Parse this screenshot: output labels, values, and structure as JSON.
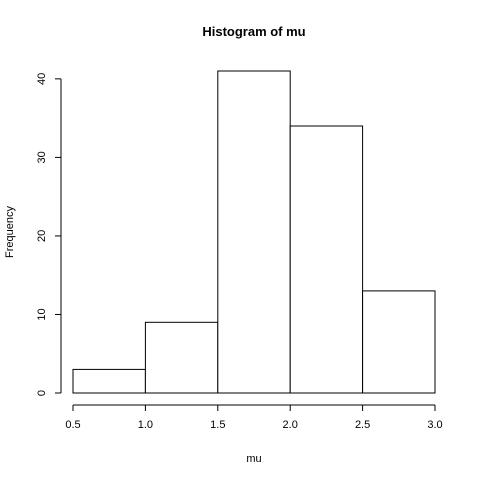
{
  "chart_data": {
    "type": "bar",
    "subtype": "histogram",
    "title": "Histogram of mu",
    "xlabel": "mu",
    "ylabel": "Frequency",
    "bins": [
      {
        "start": 0.5,
        "end": 1.0,
        "count": 3
      },
      {
        "start": 1.0,
        "end": 1.5,
        "count": 9
      },
      {
        "start": 1.5,
        "end": 2.0,
        "count": 41
      },
      {
        "start": 2.0,
        "end": 2.5,
        "count": 34
      },
      {
        "start": 2.5,
        "end": 3.0,
        "count": 13
      }
    ],
    "xlim": [
      0.5,
      3.0
    ],
    "ylim": [
      0,
      41
    ],
    "xticks": [
      "0.5",
      "1.0",
      "1.5",
      "2.0",
      "2.5",
      "3.0"
    ],
    "xtick_values": [
      0.5,
      1.0,
      1.5,
      2.0,
      2.5,
      3.0
    ],
    "yticks": [
      "0",
      "10",
      "20",
      "30",
      "40"
    ],
    "ytick_values": [
      0,
      10,
      20,
      30,
      40
    ],
    "grid": false,
    "bar_fill": "#ffffff",
    "bar_stroke": "#000000"
  }
}
